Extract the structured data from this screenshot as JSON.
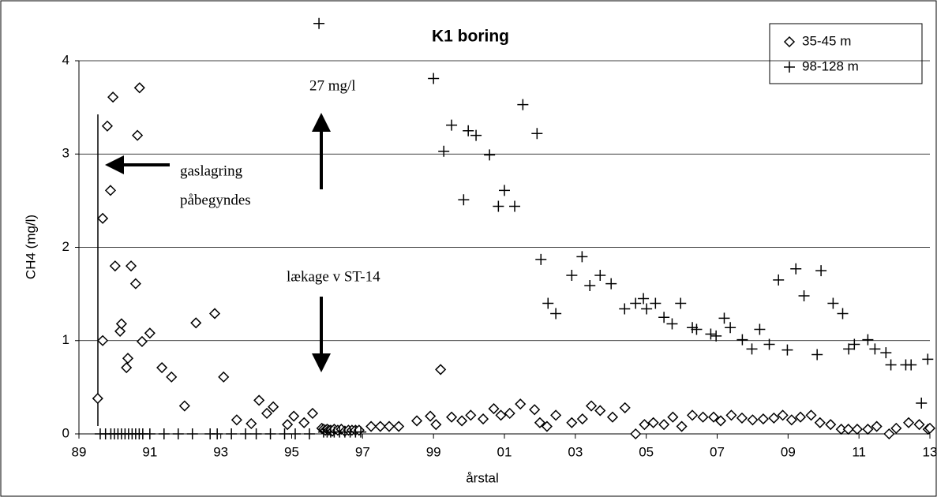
{
  "chart_data": {
    "type": "scatter",
    "title": "K1 boring",
    "ylabel": "CH4 (mg/l)",
    "xlabel": "årstal",
    "xlim": [
      1989,
      2013
    ],
    "ylim": [
      0,
      4
    ],
    "xticks": [
      {
        "value": 1989,
        "label": "89"
      },
      {
        "value": 1991,
        "label": "91"
      },
      {
        "value": 1993,
        "label": "93"
      },
      {
        "value": 1995,
        "label": "95"
      },
      {
        "value": 1997,
        "label": "97"
      },
      {
        "value": 1999,
        "label": "99"
      },
      {
        "value": 2001,
        "label": "01"
      },
      {
        "value": 2003,
        "label": "03"
      },
      {
        "value": 2005,
        "label": "05"
      },
      {
        "value": 2007,
        "label": "07"
      },
      {
        "value": 2009,
        "label": "09"
      },
      {
        "value": 2011,
        "label": "11"
      },
      {
        "value": 2013,
        "label": "13"
      }
    ],
    "yticks": [
      0,
      1,
      2,
      3,
      4
    ],
    "grid": true,
    "legend": "top-right",
    "annotations": [
      "27 mg/l",
      "gaslagring",
      "påbegyndes",
      "lækage v ST-14"
    ],
    "series": [
      {
        "name": "35-45 m",
        "marker": "diamond",
        "color": "#000000",
        "x": [
          1989.53,
          1989.67,
          1989.67,
          1989.8,
          1989.89,
          1989.96,
          1990.02,
          1990.16,
          1990.2,
          1990.34,
          1990.38,
          1990.47,
          1990.6,
          1990.65,
          1990.71,
          1990.78,
          1991.0,
          1991.34,
          1991.61,
          1991.98,
          1992.3,
          1992.83,
          1993.08,
          1993.45,
          1993.86,
          1994.08,
          1994.3,
          1994.48,
          1994.88,
          1995.06,
          1995.35,
          1995.59,
          1995.85,
          1995.9,
          1995.95,
          1996.0,
          1996.05,
          1996.1,
          1996.15,
          1996.2,
          1996.3,
          1996.4,
          1996.5,
          1996.6,
          1996.7,
          1996.8,
          1996.9,
          1997.24,
          1997.5,
          1997.75,
          1998.02,
          1998.53,
          1998.91,
          1999.07,
          1999.2,
          1999.51,
          1999.8,
          2000.05,
          2000.4,
          2000.7,
          2000.9,
          2001.15,
          2001.45,
          2001.85,
          2002.0,
          2002.2,
          2002.45,
          2002.9,
          2003.2,
          2003.45,
          2003.7,
          2004.05,
          2004.4,
          2004.7,
          2004.95,
          2005.2,
          2005.5,
          2005.75,
          2006.0,
          2006.3,
          2006.6,
          2006.9,
          2007.1,
          2007.4,
          2007.7,
          2008.0,
          2008.3,
          2008.6,
          2008.85,
          2009.1,
          2009.35,
          2009.65,
          2009.9,
          2010.2,
          2010.5,
          2010.7,
          2010.95,
          2011.25,
          2011.5,
          2011.85,
          2012.05,
          2012.4,
          2012.7,
          2012.95,
          2013.0
        ],
        "values": [
          0.38,
          1.0,
          2.31,
          3.3,
          2.61,
          3.61,
          1.8,
          1.1,
          1.18,
          0.71,
          0.81,
          1.8,
          1.61,
          3.2,
          3.71,
          0.99,
          1.08,
          0.71,
          0.61,
          0.3,
          1.19,
          1.29,
          0.61,
          0.15,
          0.11,
          0.36,
          0.22,
          0.29,
          0.1,
          0.19,
          0.12,
          0.22,
          0.06,
          0.05,
          0.04,
          0.05,
          0.04,
          0.04,
          0.03,
          0.05,
          0.04,
          0.05,
          0.03,
          0.04,
          0.04,
          0.04,
          0.04,
          0.08,
          0.08,
          0.08,
          0.08,
          0.14,
          0.19,
          0.1,
          0.69,
          0.18,
          0.14,
          0.2,
          0.16,
          0.27,
          0.2,
          0.22,
          0.32,
          0.26,
          0.12,
          0.08,
          0.2,
          0.12,
          0.16,
          0.3,
          0.25,
          0.18,
          0.28,
          0.0,
          0.1,
          0.12,
          0.1,
          0.18,
          0.08,
          0.2,
          0.18,
          0.18,
          0.14,
          0.2,
          0.17,
          0.15,
          0.16,
          0.17,
          0.2,
          0.15,
          0.18,
          0.2,
          0.12,
          0.1,
          0.05,
          0.05,
          0.05,
          0.05,
          0.08,
          0.0,
          0.06,
          0.12,
          0.1,
          0.05,
          0.06
        ]
      },
      {
        "name": "98-128 m",
        "marker": "plus",
        "color": "#000000",
        "x": [
          1989.6,
          1989.75,
          1989.9,
          1990.0,
          1990.1,
          1990.2,
          1990.3,
          1990.4,
          1990.5,
          1990.6,
          1990.7,
          1990.8,
          1991.0,
          1991.4,
          1991.8,
          1992.2,
          1992.7,
          1992.9,
          1993.3,
          1993.7,
          1994.0,
          1994.4,
          1994.8,
          1995.1,
          1995.5,
          1995.77,
          1995.9,
          1996.0,
          1996.1,
          1996.2,
          1996.35,
          1996.5,
          1996.65,
          1996.8,
          1996.95,
          1999.0,
          1999.29,
          1999.51,
          1999.85,
          1999.98,
          2000.2,
          2000.58,
          2000.83,
          2001.0,
          2001.29,
          2001.52,
          2001.92,
          2002.03,
          2002.23,
          2002.45,
          2002.9,
          2003.19,
          2003.41,
          2003.7,
          2004.01,
          2004.39,
          2004.7,
          2004.92,
          2005.01,
          2005.26,
          2005.5,
          2005.73,
          2005.97,
          2006.3,
          2006.42,
          2006.82,
          2006.97,
          2007.2,
          2007.37,
          2007.71,
          2007.98,
          2008.2,
          2008.47,
          2008.73,
          2008.98,
          2009.22,
          2009.45,
          2009.82,
          2009.93,
          2010.27,
          2010.54,
          2010.71,
          2010.87,
          2011.25,
          2011.45,
          2011.76,
          2011.9,
          2012.32,
          2012.47,
          2012.76,
          2012.94
        ],
        "values": [
          0,
          0,
          0,
          0,
          0,
          0,
          0,
          0,
          0,
          0,
          0,
          0,
          0,
          0,
          0,
          0,
          0,
          0,
          0,
          0,
          0,
          0,
          0,
          0,
          0,
          4.4,
          0.02,
          0.02,
          0.02,
          0.02,
          0.02,
          0.02,
          0.02,
          0.02,
          0.02,
          3.81,
          3.03,
          3.31,
          2.51,
          3.25,
          3.2,
          2.99,
          2.44,
          2.61,
          2.44,
          3.53,
          3.22,
          1.87,
          1.4,
          1.29,
          1.7,
          1.9,
          1.59,
          1.7,
          1.61,
          1.34,
          1.4,
          1.45,
          1.34,
          1.4,
          1.25,
          1.18,
          1.4,
          1.14,
          1.12,
          1.07,
          1.05,
          1.24,
          1.14,
          1.01,
          0.91,
          1.12,
          0.96,
          1.65,
          0.9,
          1.77,
          1.48,
          0.85,
          1.75,
          1.4,
          1.29,
          0.91,
          0.96,
          1.01,
          0.91,
          0.87,
          0.74,
          0.74,
          0.74,
          0.33,
          0.8
        ]
      }
    ]
  }
}
